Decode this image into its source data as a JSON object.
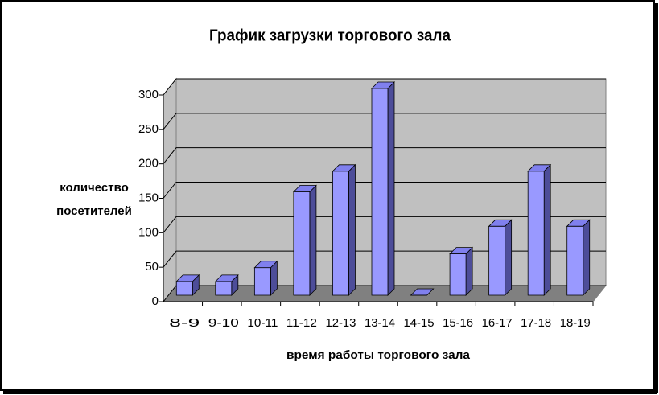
{
  "chart_data": {
    "type": "bar3d",
    "title": "График загрузки торгового зала",
    "x_label": "время работы торгового зала",
    "y_label": [
      "количество",
      "посетителей"
    ],
    "categories": [
      "8-9",
      "9-10",
      "10-11",
      "11-12",
      "12-13",
      "13-14",
      "14-15",
      "15-16",
      "16-17",
      "17-18",
      "18-19"
    ],
    "values": [
      20,
      20,
      40,
      150,
      180,
      300,
      0,
      60,
      100,
      180,
      100
    ],
    "color": "#9999ff",
    "ylim": [
      0,
      300
    ],
    "yticks": [
      0,
      50,
      100,
      150,
      200,
      250,
      300
    ],
    "grid": true
  }
}
